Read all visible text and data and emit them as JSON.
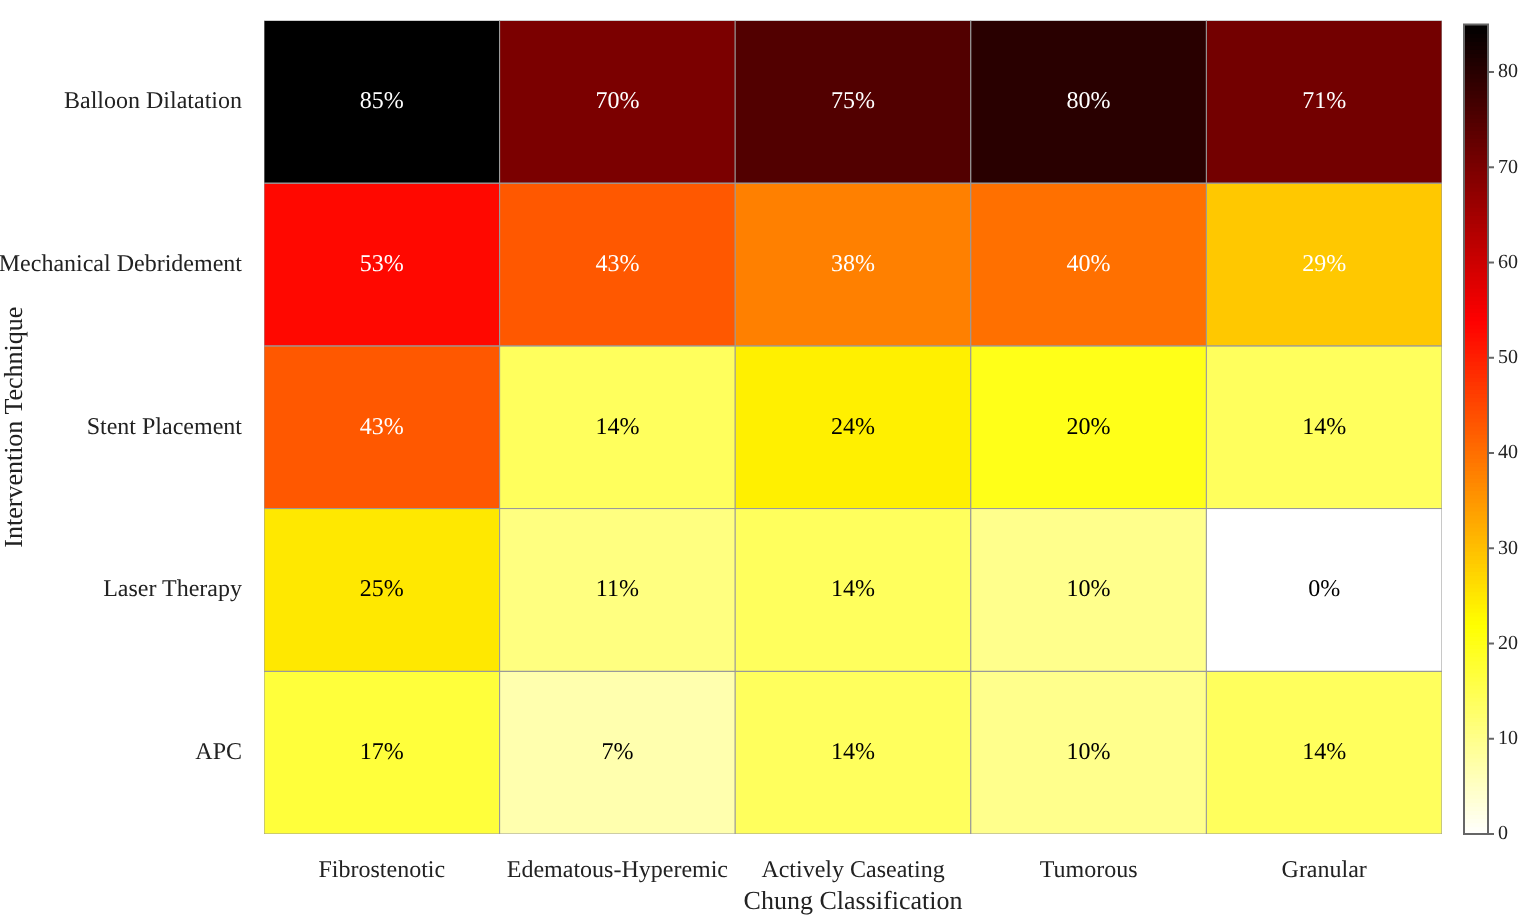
{
  "chart_data": {
    "type": "heatmap",
    "xlabel": "Chung Classification",
    "ylabel": "Intervention Technique",
    "categories": [
      "Fibrostenotic",
      "Edematous-Hyperemic",
      "Actively Caseating",
      "Tumorous",
      "Granular"
    ],
    "y_categories": [
      "Balloon Dilatation",
      "Mechanical Debridement",
      "Stent Placement",
      "Laser Therapy",
      "APC"
    ],
    "cells": [
      [
        85,
        70,
        75,
        80,
        71
      ],
      [
        53,
        43,
        38,
        40,
        29
      ],
      [
        43,
        14,
        24,
        20,
        14
      ],
      [
        25,
        11,
        14,
        10,
        0
      ],
      [
        17,
        7,
        14,
        10,
        14
      ]
    ],
    "cell_labels": [
      [
        "85%",
        "70%",
        "75%",
        "80%",
        "71%"
      ],
      [
        "53%",
        "43%",
        "38%",
        "40%",
        "29%"
      ],
      [
        "43%",
        "14%",
        "24%",
        "20%",
        "14%"
      ],
      [
        "25%",
        "11%",
        "14%",
        "10%",
        "0%"
      ],
      [
        "17%",
        "7%",
        "14%",
        "10%",
        "14%"
      ]
    ],
    "clim": [
      0,
      85
    ],
    "cticks": [
      0,
      10,
      20,
      30,
      40,
      50,
      60,
      70,
      80
    ]
  }
}
